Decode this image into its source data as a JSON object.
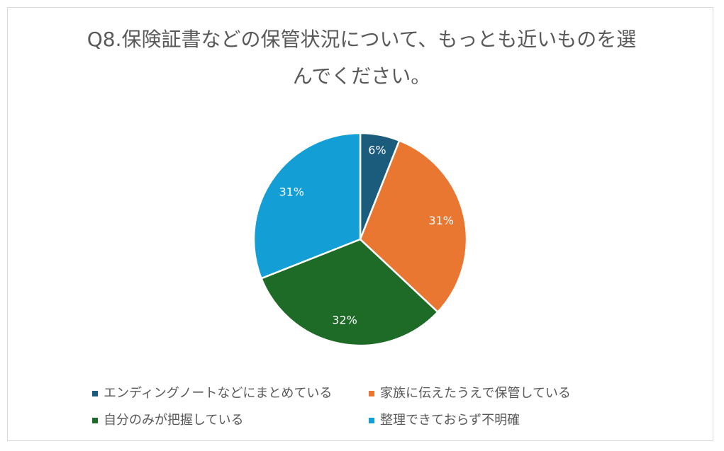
{
  "chart_data": {
    "type": "pie",
    "title": "Q8.保険証書などの保管状況について、もっとも近いものを選んでください。",
    "categories": [
      "エンディングノートなどにまとめている",
      "家族に伝えたうえで保管している",
      "自分のみが把握している",
      "整理できておらず不明確"
    ],
    "values": [
      6,
      31,
      32,
      31
    ],
    "value_labels": [
      "6%",
      "31%",
      "32%",
      "31%"
    ],
    "colors": [
      "#1b5c7c",
      "#e97631",
      "#1d6b27",
      "#139fd5"
    ],
    "legend": "bottom"
  }
}
